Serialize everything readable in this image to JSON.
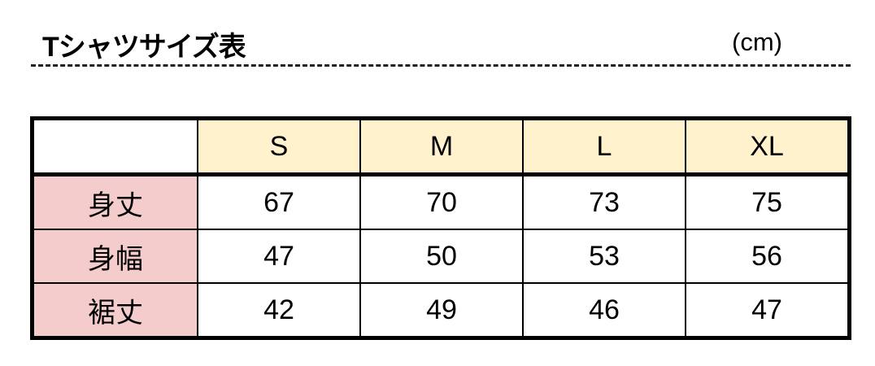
{
  "title": "Tシャツサイズ表",
  "unit": "(cm)",
  "colors": {
    "header_bg": "#fff2cc",
    "label_bg": "#f4cccc"
  },
  "sizes": [
    "S",
    "M",
    "L",
    "XL"
  ],
  "rows": [
    {
      "label": "身丈",
      "values": [
        "67",
        "70",
        "73",
        "75"
      ]
    },
    {
      "label": "身幅",
      "values": [
        "47",
        "50",
        "53",
        "56"
      ]
    },
    {
      "label": "裾丈",
      "values": [
        "42",
        "49",
        "46",
        "47"
      ]
    }
  ]
}
